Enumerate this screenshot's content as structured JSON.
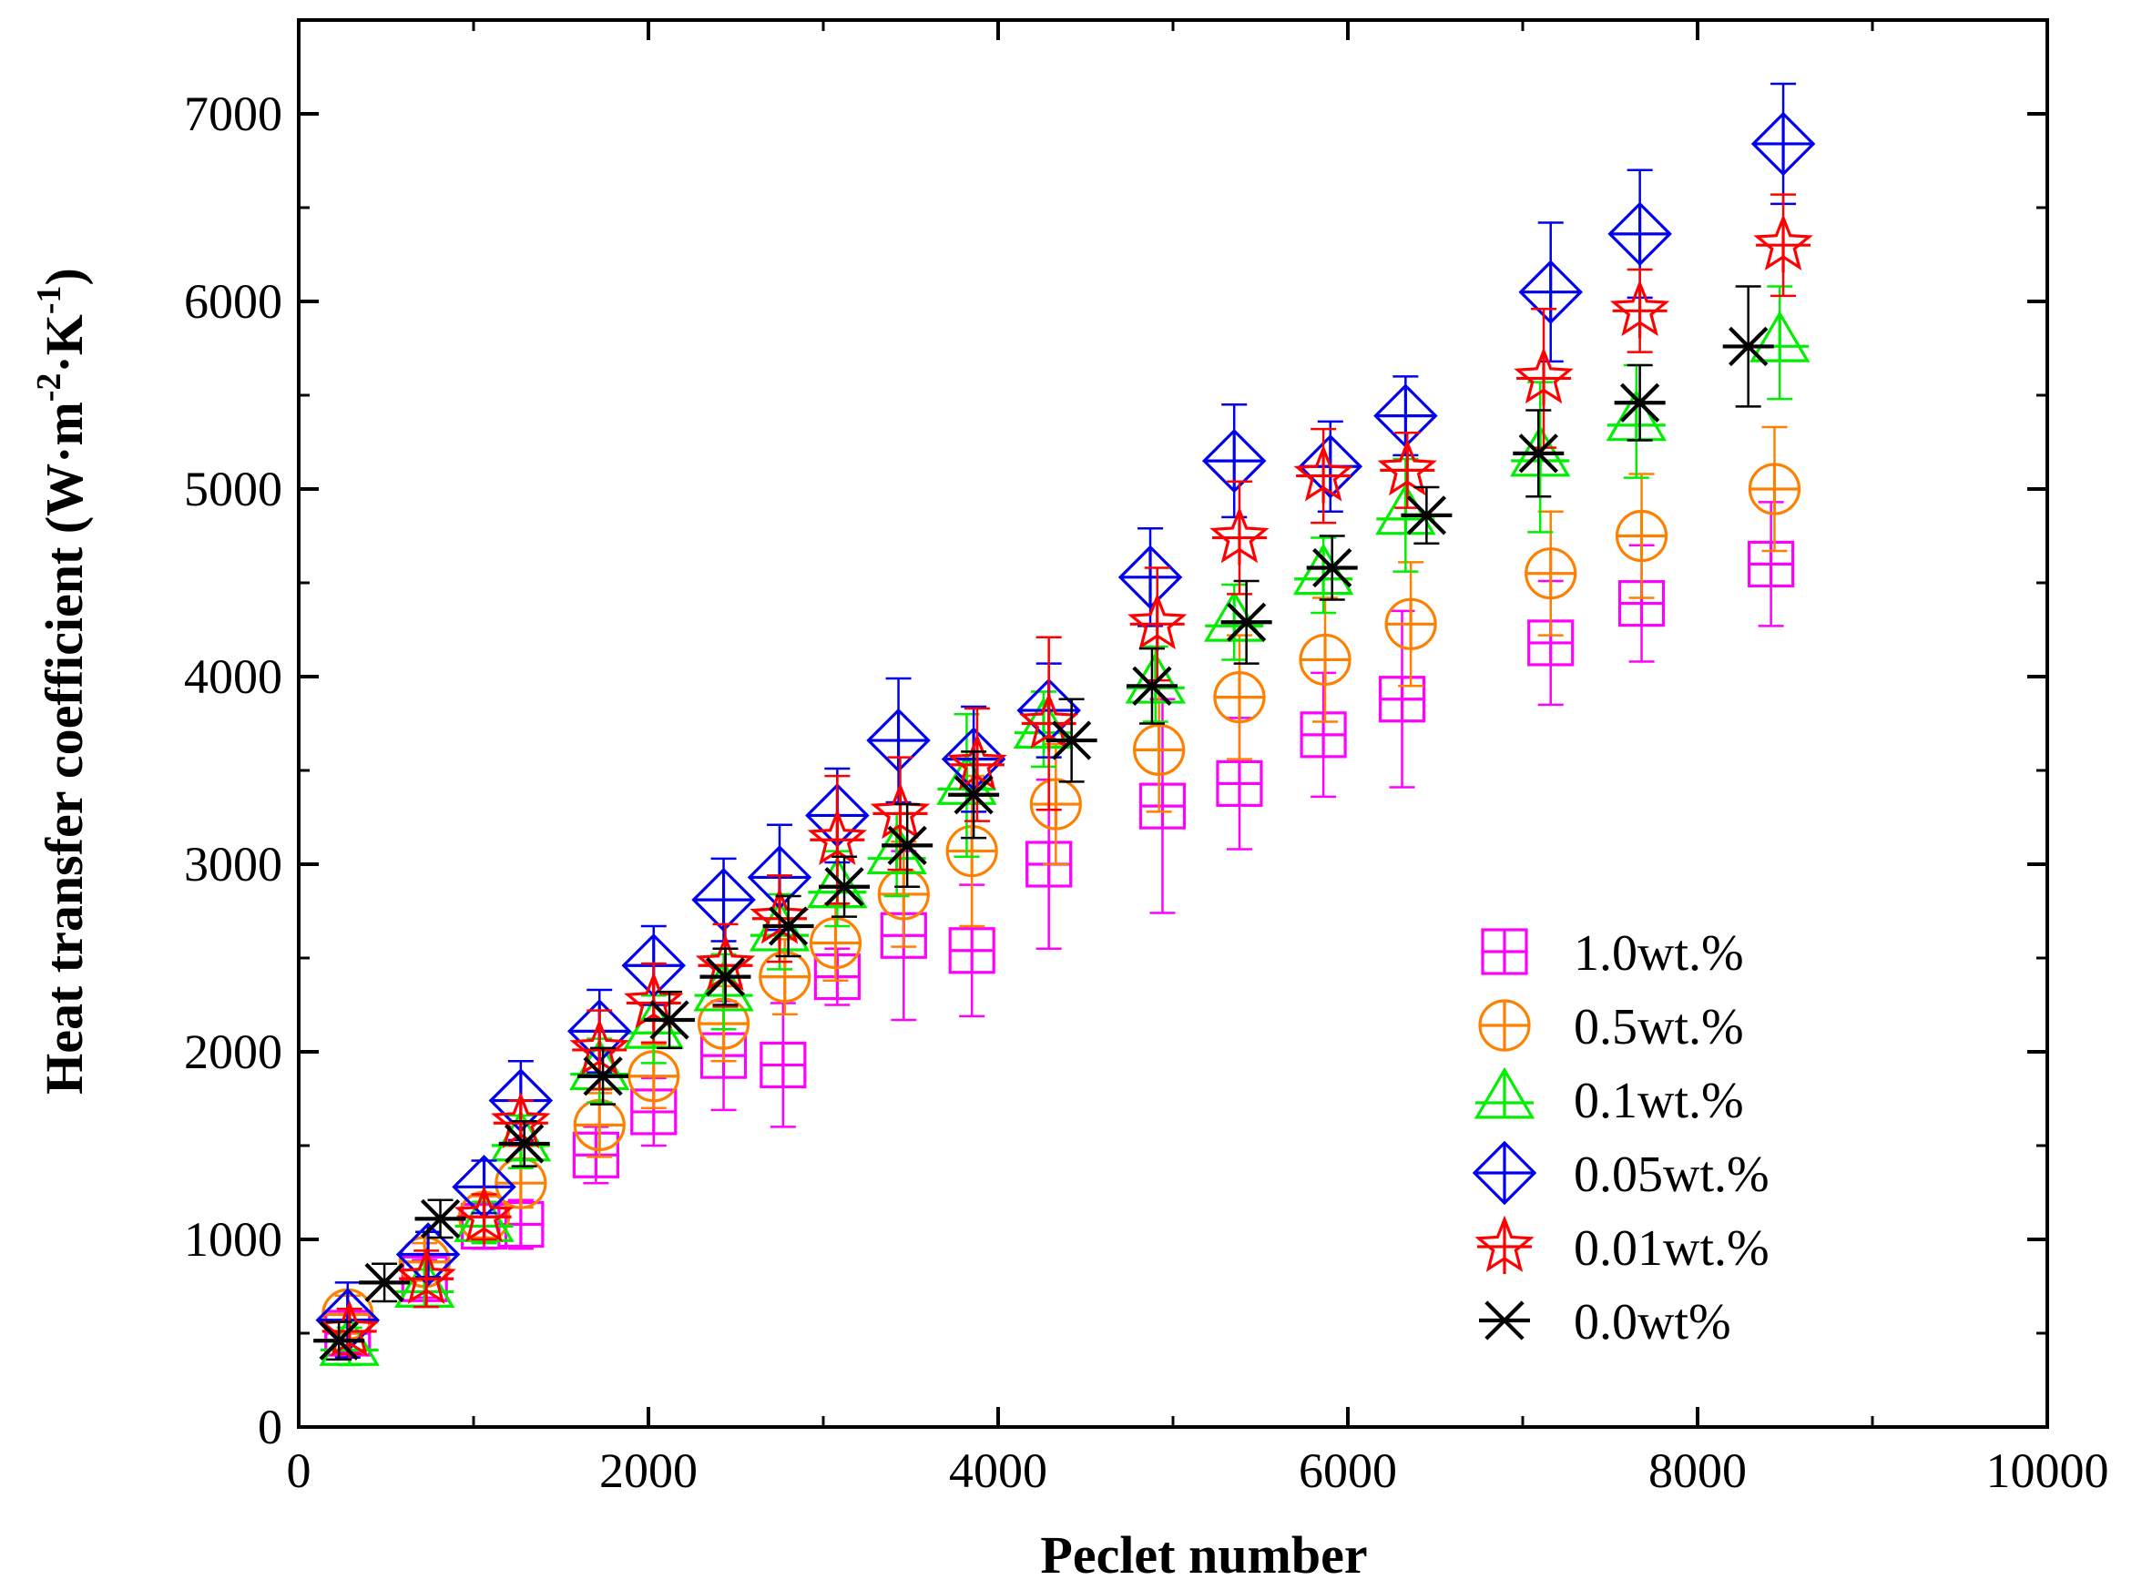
{
  "chart_data": {
    "type": "scatter",
    "title": "",
    "xlabel": "Peclet number",
    "ylabel": {
      "main": "Heat transfer coefficient (W·m",
      "sup1": "-2",
      "mid": "·K",
      "sup2": "-1",
      "end": ")"
    },
    "xlim": [
      0,
      10000
    ],
    "ylim": [
      0,
      7500
    ],
    "xticks": [
      0,
      2000,
      4000,
      6000,
      8000,
      10000
    ],
    "xtick_labels": [
      "0",
      "2000",
      "4000",
      "6000",
      "8000",
      "10000"
    ],
    "yticks": [
      0,
      1000,
      2000,
      3000,
      4000,
      5000,
      6000,
      7000
    ],
    "ytick_labels": [
      "0",
      "1000",
      "2000",
      "3000",
      "4000",
      "5000",
      "6000",
      "7000"
    ],
    "grid": false,
    "legend_position": "lower-right",
    "series": [
      {
        "name": "1.0wt.%",
        "marker": "square-plus",
        "color": "#ff00ff",
        "points": [
          [
            280,
            500,
            100
          ],
          [
            720,
            790,
            100
          ],
          [
            1060,
            1070,
            120
          ],
          [
            1270,
            1080,
            130
          ],
          [
            1700,
            1450,
            150
          ],
          [
            2030,
            1680,
            180
          ],
          [
            2430,
            1980,
            290
          ],
          [
            2770,
            1930,
            330
          ],
          [
            3080,
            2400,
            150
          ],
          [
            3460,
            2620,
            450
          ],
          [
            3850,
            2540,
            350
          ],
          [
            4290,
            3000,
            450
          ],
          [
            4940,
            3310,
            570
          ],
          [
            5380,
            3430,
            350
          ],
          [
            5860,
            3690,
            330
          ],
          [
            6310,
            3880,
            470
          ],
          [
            7160,
            4180,
            330
          ],
          [
            7680,
            4390,
            310
          ],
          [
            8420,
            4600,
            330
          ]
        ]
      },
      {
        "name": "0.5wt.%",
        "marker": "circle-plus",
        "color": "#ff8000",
        "points": [
          [
            280,
            600,
            100
          ],
          [
            720,
            880,
            100
          ],
          [
            1060,
            1120,
            110
          ],
          [
            1270,
            1300,
            130
          ],
          [
            1720,
            1610,
            170
          ],
          [
            2030,
            1870,
            170
          ],
          [
            2430,
            2150,
            200
          ],
          [
            2780,
            2400,
            200
          ],
          [
            3070,
            2580,
            200
          ],
          [
            3460,
            2840,
            280
          ],
          [
            3850,
            3070,
            400
          ],
          [
            4330,
            3320,
            320
          ],
          [
            4920,
            3610,
            330
          ],
          [
            5380,
            3890,
            330
          ],
          [
            5870,
            4090,
            330
          ],
          [
            6360,
            4280,
            330
          ],
          [
            7160,
            4550,
            330
          ],
          [
            7680,
            4750,
            330
          ],
          [
            8440,
            5000,
            330
          ]
        ]
      },
      {
        "name": "0.1wt.%",
        "marker": "triangle-plus",
        "color": "#00ee00",
        "points": [
          [
            290,
            430,
            100
          ],
          [
            720,
            740,
            100
          ],
          [
            1060,
            1090,
            110
          ],
          [
            1270,
            1520,
            140
          ],
          [
            1720,
            1900,
            170
          ],
          [
            2030,
            2120,
            180
          ],
          [
            2430,
            2320,
            200
          ],
          [
            2750,
            2640,
            200
          ],
          [
            3080,
            2870,
            200
          ],
          [
            3420,
            3050,
            220
          ],
          [
            3820,
            3420,
            380
          ],
          [
            4260,
            3720,
            200
          ],
          [
            4900,
            3960,
            200
          ],
          [
            5350,
            4290,
            200
          ],
          [
            5860,
            4540,
            200
          ],
          [
            6330,
            4860,
            300
          ],
          [
            7100,
            5170,
            400
          ],
          [
            7650,
            5360,
            300
          ],
          [
            8470,
            5780,
            300
          ]
        ]
      },
      {
        "name": "0.05wt.%",
        "marker": "diamond-plus",
        "color": "#0000ee",
        "points": [
          [
            280,
            570,
            200
          ],
          [
            740,
            920,
            120
          ],
          [
            1060,
            1280,
            140
          ],
          [
            1270,
            1740,
            210
          ],
          [
            1720,
            2110,
            220
          ],
          [
            2030,
            2460,
            210
          ],
          [
            2430,
            2810,
            220
          ],
          [
            2750,
            2930,
            280
          ],
          [
            3080,
            3260,
            250
          ],
          [
            3430,
            3660,
            330
          ],
          [
            3860,
            3560,
            280
          ],
          [
            4290,
            3820,
            250
          ],
          [
            4870,
            4530,
            260
          ],
          [
            5350,
            5150,
            300
          ],
          [
            5900,
            5120,
            240
          ],
          [
            6330,
            5390,
            210
          ],
          [
            7160,
            6050,
            370
          ],
          [
            7670,
            6360,
            340
          ],
          [
            8490,
            6840,
            320
          ]
        ]
      },
      {
        "name": "0.01wt.%",
        "marker": "star-plus",
        "color": "#ff0000",
        "points": [
          [
            290,
            510,
            120
          ],
          [
            730,
            790,
            150
          ],
          [
            1060,
            1120,
            120
          ],
          [
            1270,
            1620,
            120
          ],
          [
            1720,
            2010,
            210
          ],
          [
            2030,
            2260,
            210
          ],
          [
            2440,
            2460,
            220
          ],
          [
            2750,
            2710,
            230
          ],
          [
            3080,
            3130,
            340
          ],
          [
            3440,
            3270,
            300
          ],
          [
            3880,
            3530,
            300
          ],
          [
            4290,
            3750,
            460
          ],
          [
            4910,
            4280,
            300
          ],
          [
            5380,
            4740,
            300
          ],
          [
            5860,
            5070,
            250
          ],
          [
            6340,
            5100,
            200
          ],
          [
            7120,
            5590,
            370
          ],
          [
            7670,
            5950,
            220
          ],
          [
            8490,
            6300,
            270
          ]
        ]
      },
      {
        "name": "0.0wt%",
        "marker": "asterisk",
        "color": "#000000",
        "points": [
          [
            230,
            460,
            100
          ],
          [
            490,
            770,
            100
          ],
          [
            810,
            1110,
            100
          ],
          [
            1290,
            1510,
            120
          ],
          [
            1740,
            1870,
            150
          ],
          [
            2120,
            2170,
            150
          ],
          [
            2440,
            2400,
            150
          ],
          [
            2800,
            2670,
            160
          ],
          [
            3120,
            2880,
            160
          ],
          [
            3480,
            3100,
            220
          ],
          [
            3860,
            3370,
            230
          ],
          [
            4420,
            3660,
            220
          ],
          [
            4880,
            3950,
            200
          ],
          [
            5420,
            4290,
            220
          ],
          [
            5910,
            4580,
            170
          ],
          [
            6450,
            4860,
            150
          ],
          [
            7090,
            5190,
            230
          ],
          [
            7670,
            5460,
            200
          ],
          [
            8290,
            5760,
            320
          ]
        ]
      }
    ]
  }
}
